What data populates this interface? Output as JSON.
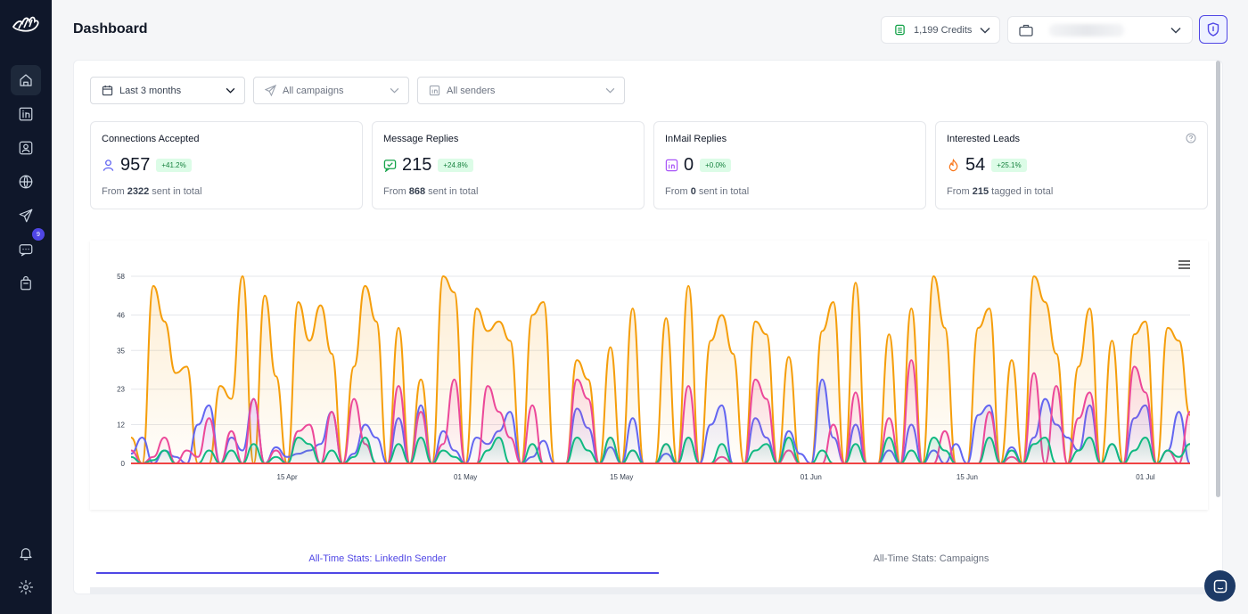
{
  "header": {
    "title": "Dashboard"
  },
  "credits": {
    "label": "1,199 Credits"
  },
  "filters": {
    "date_range": "Last 3 months",
    "campaigns_placeholder": "All campaigns",
    "senders_placeholder": "All senders"
  },
  "sidebar": {
    "items": [
      {
        "name": "home-icon"
      },
      {
        "name": "linkedin-icon"
      },
      {
        "name": "contacts-icon"
      },
      {
        "name": "globe-icon"
      },
      {
        "name": "campaigns-icon"
      },
      {
        "name": "messages-icon",
        "badge": "9"
      },
      {
        "name": "integrations-icon"
      }
    ],
    "bottom": [
      {
        "name": "bell-icon"
      },
      {
        "name": "settings-icon"
      }
    ]
  },
  "stats": [
    {
      "title": "Connections Accepted",
      "value": "957",
      "delta": "+41.2%",
      "foot_pre": "From ",
      "foot_num": "2322",
      "foot_post": " sent in total",
      "icon": "person-icon",
      "color": "#6366f1"
    },
    {
      "title": "Message Replies",
      "value": "215",
      "delta": "+24.8%",
      "foot_pre": "From ",
      "foot_num": "868",
      "foot_post": " sent in total",
      "icon": "message-check-icon",
      "color": "#16a34a"
    },
    {
      "title": "InMail Replies",
      "value": "0",
      "delta": "+0.0%",
      "foot_pre": "From ",
      "foot_num": "0",
      "foot_post": " sent in total",
      "icon": "inmail-icon",
      "color": "#a855f7"
    },
    {
      "title": "Interested Leads",
      "value": "54",
      "delta": "+25.1%",
      "foot_pre": "From ",
      "foot_num": "215",
      "foot_post": " tagged in total",
      "icon": "flame-icon",
      "color": "#f97316"
    }
  ],
  "colors": {
    "accent": "#4f46e5",
    "sidebar": "#0f172a",
    "positive": "#15803d"
  },
  "tabs": [
    {
      "label": "All-Time Stats: LinkedIn Sender",
      "active": true
    },
    {
      "label": "All-Time Stats: Campaigns",
      "active": false
    }
  ],
  "chart_data": {
    "type": "area",
    "x_start": "2024-04-01",
    "x_ticks": [
      {
        "label": "15 Apr",
        "date": "2024-04-15"
      },
      {
        "label": "01 May",
        "date": "2024-05-01"
      },
      {
        "label": "15 May",
        "date": "2024-05-15"
      },
      {
        "label": "01 Jun",
        "date": "2024-06-01"
      },
      {
        "label": "15 Jun",
        "date": "2024-06-15"
      },
      {
        "label": "01 Jul",
        "date": "2024-07-01"
      }
    ],
    "y_ticks": [
      0,
      12,
      23,
      35,
      46,
      58
    ],
    "ylim": [
      0,
      58
    ],
    "grid": true,
    "series": [
      {
        "color": "#f59e0b",
        "values": [
          8,
          0,
          55,
          44,
          28,
          30,
          0,
          0,
          24,
          20,
          58,
          0,
          52,
          27,
          0,
          50,
          38,
          49,
          34,
          0,
          30,
          55,
          44,
          0,
          42,
          0,
          26,
          0,
          58,
          53,
          0,
          48,
          41,
          44,
          38,
          0,
          46,
          50,
          0,
          0,
          32,
          26,
          0,
          36,
          0,
          48,
          0,
          0,
          45,
          0,
          55,
          0,
          38,
          46,
          34,
          0,
          44,
          40,
          0,
          33,
          0,
          0,
          41,
          50,
          0,
          56,
          0,
          0,
          40,
          0,
          48,
          0,
          58,
          42,
          0,
          0,
          42,
          48,
          0,
          32,
          0,
          58,
          50,
          34,
          0,
          30,
          48,
          0,
          38,
          0,
          40,
          44,
          0,
          42,
          38,
          15
        ]
      },
      {
        "color": "#6366f1",
        "values": [
          3,
          8,
          0,
          4,
          2,
          0,
          12,
          18,
          0,
          8,
          4,
          20,
          0,
          5,
          2,
          3,
          4,
          6,
          16,
          0,
          3,
          12,
          8,
          0,
          14,
          0,
          18,
          0,
          10,
          4,
          0,
          8,
          6,
          10,
          16,
          0,
          2,
          7,
          0,
          0,
          17,
          11,
          0,
          5,
          0,
          14,
          0,
          0,
          3,
          0,
          8,
          0,
          12,
          18,
          0,
          0,
          14,
          8,
          0,
          10,
          3,
          0,
          26,
          8,
          0,
          12,
          0,
          0,
          4,
          0,
          12,
          0,
          4,
          0,
          6,
          0,
          15,
          18,
          0,
          5,
          0,
          8,
          20,
          12,
          8,
          4,
          18,
          0,
          6,
          0,
          14,
          18,
          0,
          4,
          16,
          0
        ]
      },
      {
        "color": "#ec4899",
        "values": [
          4,
          0,
          2,
          8,
          0,
          4,
          2,
          14,
          0,
          10,
          0,
          20,
          0,
          4,
          0,
          10,
          12,
          0,
          16,
          0,
          20,
          6,
          0,
          0,
          24,
          0,
          16,
          0,
          6,
          26,
          0,
          0,
          24,
          16,
          8,
          0,
          18,
          0,
          0,
          0,
          26,
          20,
          0,
          8,
          0,
          4,
          0,
          0,
          6,
          0,
          24,
          0,
          0,
          2,
          0,
          0,
          26,
          20,
          0,
          4,
          0,
          0,
          0,
          12,
          0,
          22,
          0,
          0,
          14,
          0,
          32,
          0,
          0,
          10,
          0,
          0,
          0,
          16,
          0,
          2,
          0,
          28,
          0,
          24,
          0,
          14,
          22,
          0,
          0,
          0,
          30,
          22,
          0,
          4,
          0,
          16
        ]
      },
      {
        "color": "#10b981",
        "values": [
          2,
          0,
          1,
          4,
          0,
          0,
          0,
          4,
          0,
          4,
          0,
          6,
          0,
          2,
          0,
          8,
          6,
          0,
          4,
          0,
          2,
          8,
          0,
          0,
          6,
          0,
          8,
          0,
          4,
          2,
          0,
          0,
          4,
          8,
          0,
          0,
          6,
          0,
          0,
          0,
          8,
          4,
          0,
          8,
          0,
          4,
          0,
          0,
          6,
          0,
          8,
          0,
          0,
          6,
          0,
          0,
          4,
          6,
          0,
          8,
          0,
          0,
          4,
          0,
          0,
          6,
          0,
          0,
          8,
          0,
          4,
          0,
          8,
          4,
          0,
          0,
          0,
          8,
          0,
          4,
          0,
          6,
          8,
          0,
          0,
          4,
          8,
          0,
          6,
          0,
          4,
          8,
          0,
          4,
          2,
          6
        ]
      },
      {
        "color": "#ef4444",
        "values": [
          0,
          0,
          0,
          0,
          0,
          0,
          0,
          0,
          0,
          0,
          0,
          0,
          0,
          0,
          0,
          0,
          0,
          0,
          0,
          0,
          0,
          0,
          0,
          0,
          0,
          0,
          0,
          0,
          0,
          0,
          0,
          0,
          0,
          0,
          0,
          0,
          0,
          0,
          0,
          0,
          0,
          0,
          0,
          0,
          0,
          0,
          0,
          0,
          0,
          0,
          0,
          0,
          0,
          0,
          0,
          0,
          0,
          0,
          0,
          0,
          0,
          0,
          0,
          0,
          0,
          0,
          0,
          0,
          0,
          0,
          0,
          0,
          0,
          0,
          0,
          0,
          0,
          0,
          0,
          0,
          0,
          0,
          0,
          0,
          0,
          0,
          0,
          0,
          0,
          0,
          0,
          0,
          0,
          0,
          0,
          0
        ]
      }
    ]
  }
}
